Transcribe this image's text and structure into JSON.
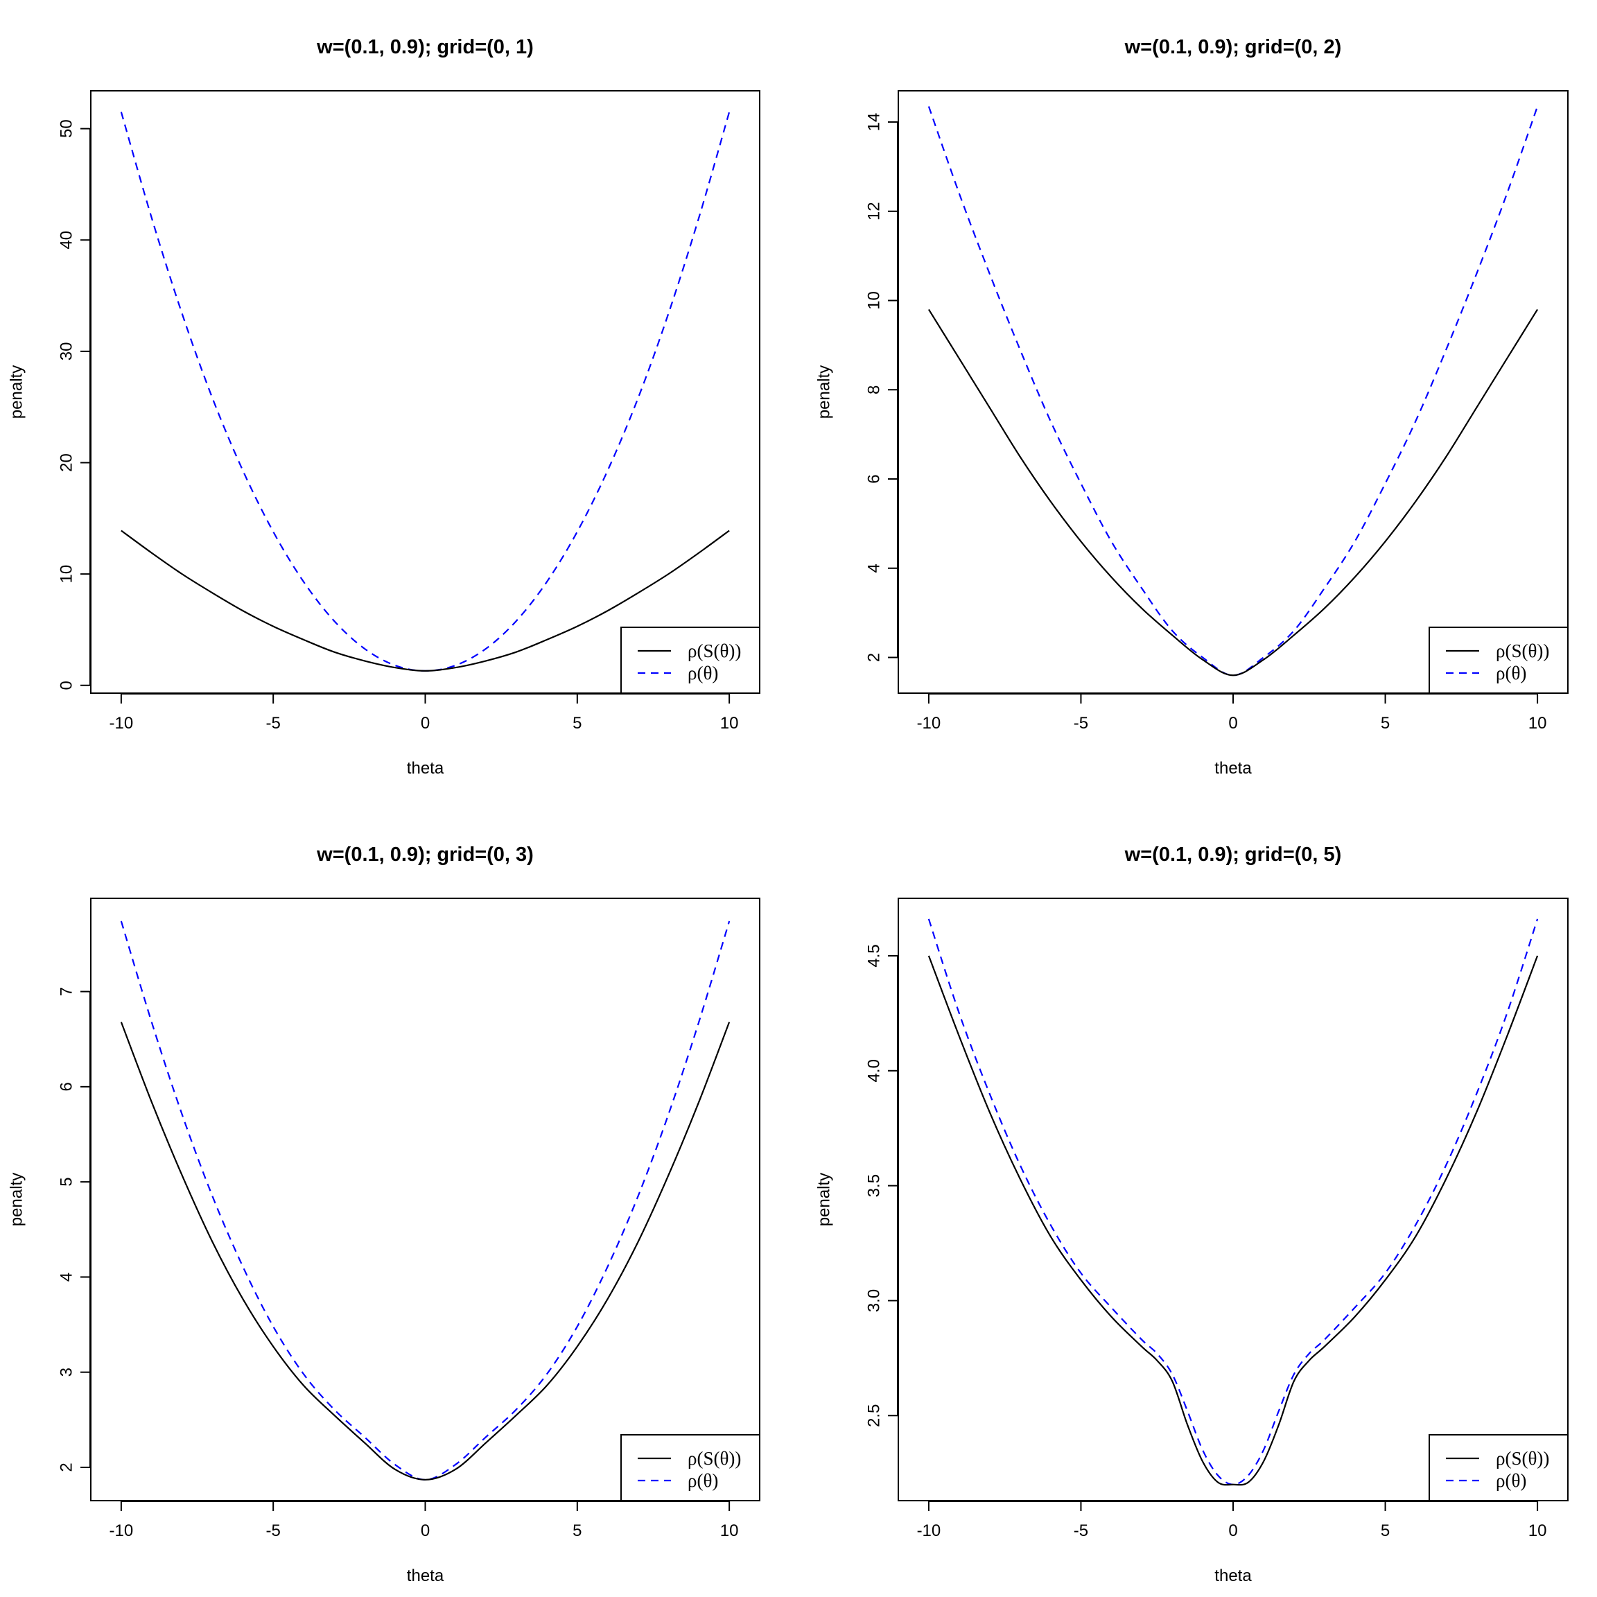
{
  "colors": {
    "black_series": "#000000",
    "blue_series": "#0000ff",
    "axis": "#000000",
    "background": "#ffffff"
  },
  "chart_data": [
    {
      "type": "line",
      "title": "w=(0.1, 0.9); grid=(0, 1)",
      "xlabel": "theta",
      "ylabel": "penalty",
      "xlim": [
        -11,
        11
      ],
      "ylim": [
        -0.7,
        53.4
      ],
      "xticks": [
        -10,
        -5,
        0,
        5,
        10
      ],
      "yticks": [
        0,
        10,
        20,
        30,
        40,
        50
      ],
      "ytick_labels": [
        "0",
        "10",
        "20",
        "30",
        "40",
        "50"
      ],
      "grid": false,
      "legend_position": "bottom-right",
      "series": [
        {
          "name": "ρ(S(θ))",
          "style": "solid",
          "color": "#000000",
          "x": [
            -10,
            -9,
            -8,
            -7,
            -6,
            -5,
            -4,
            -3,
            -2,
            -1,
            0,
            1,
            2,
            3,
            4,
            5,
            6,
            7,
            8,
            9,
            10
          ],
          "y": [
            13.9,
            11.9,
            10.0,
            8.3,
            6.7,
            5.3,
            4.1,
            3.0,
            2.2,
            1.6,
            1.3,
            1.6,
            2.2,
            3.0,
            4.1,
            5.3,
            6.7,
            8.3,
            10.0,
            11.9,
            13.9
          ]
        },
        {
          "name": "ρ(θ)",
          "style": "dashed",
          "color": "#0000ff",
          "x": [
            -10,
            -9,
            -8,
            -7,
            -6,
            -5,
            -4,
            -3,
            -2,
            -1,
            0,
            1,
            2,
            3,
            4,
            5,
            6,
            7,
            8,
            9,
            10
          ],
          "y": [
            51.5,
            42.0,
            33.4,
            25.8,
            19.3,
            13.8,
            9.3,
            5.8,
            3.3,
            1.8,
            1.3,
            1.8,
            3.3,
            5.8,
            9.3,
            13.8,
            19.3,
            25.8,
            33.4,
            42.0,
            51.5
          ]
        }
      ]
    },
    {
      "type": "line",
      "title": "w=(0.1, 0.9); grid=(0, 2)",
      "xlabel": "theta",
      "ylabel": "penalty",
      "xlim": [
        -11,
        11
      ],
      "ylim": [
        1.2,
        14.7
      ],
      "xticks": [
        -10,
        -5,
        0,
        5,
        10
      ],
      "yticks": [
        2,
        4,
        6,
        8,
        10,
        12,
        14
      ],
      "ytick_labels": [
        "2",
        "4",
        "6",
        "8",
        "10",
        "12",
        "14"
      ],
      "grid": false,
      "legend_position": "bottom-right",
      "series": [
        {
          "name": "ρ(S(θ))",
          "style": "solid",
          "color": "#000000",
          "x": [
            -10,
            -9,
            -8,
            -7,
            -6,
            -5,
            -4,
            -3,
            -2,
            -1,
            0,
            1,
            2,
            3,
            4,
            5,
            6,
            7,
            8,
            9,
            10
          ],
          "y": [
            9.8,
            8.7,
            7.6,
            6.5,
            5.5,
            4.6,
            3.8,
            3.1,
            2.5,
            1.95,
            1.6,
            1.95,
            2.5,
            3.1,
            3.8,
            4.6,
            5.5,
            6.5,
            7.6,
            8.7,
            9.8
          ]
        },
        {
          "name": "ρ(θ)",
          "style": "dashed",
          "color": "#0000ff",
          "x": [
            -10,
            -9,
            -8,
            -7,
            -6,
            -5,
            -4,
            -3,
            -2,
            -1,
            0,
            1,
            2,
            3,
            4,
            5,
            6,
            7,
            8,
            9,
            10
          ],
          "y": [
            14.35,
            12.4,
            10.6,
            8.9,
            7.3,
            5.9,
            4.6,
            3.55,
            2.6,
            2.0,
            1.6,
            2.0,
            2.6,
            3.55,
            4.6,
            5.9,
            7.3,
            8.9,
            10.6,
            12.4,
            14.35
          ]
        }
      ]
    },
    {
      "type": "line",
      "title": "w=(0.1, 0.9); grid=(0, 3)",
      "xlabel": "theta",
      "ylabel": "penalty",
      "xlim": [
        -11,
        11
      ],
      "ylim": [
        1.65,
        7.98
      ],
      "xticks": [
        -10,
        -5,
        0,
        5,
        10
      ],
      "yticks": [
        2,
        3,
        4,
        5,
        6,
        7
      ],
      "ytick_labels": [
        "2",
        "3",
        "4",
        "5",
        "6",
        "7"
      ],
      "grid": false,
      "legend_position": "bottom-right",
      "series": [
        {
          "name": "ρ(S(θ))",
          "style": "solid",
          "color": "#000000",
          "x": [
            -10,
            -9,
            -8,
            -7,
            -6,
            -5,
            -4,
            -3,
            -2,
            -1,
            0,
            1,
            2,
            3,
            4,
            5,
            6,
            7,
            8,
            9,
            10
          ],
          "y": [
            6.68,
            5.84,
            5.07,
            4.37,
            3.77,
            3.27,
            2.86,
            2.55,
            2.26,
            1.98,
            1.87,
            1.98,
            2.26,
            2.55,
            2.86,
            3.27,
            3.77,
            4.37,
            5.07,
            5.84,
            6.68
          ]
        },
        {
          "name": "ρ(θ)",
          "style": "dashed",
          "color": "#0000ff",
          "x": [
            -10,
            -9,
            -8,
            -7,
            -6,
            -5,
            -4,
            -3,
            -2,
            -1,
            0,
            1,
            2,
            3,
            4,
            5,
            6,
            7,
            8,
            9,
            10
          ],
          "y": [
            7.74,
            6.68,
            5.71,
            4.85,
            4.11,
            3.48,
            2.98,
            2.61,
            2.32,
            2.03,
            1.87,
            2.03,
            2.32,
            2.61,
            2.98,
            3.48,
            4.11,
            4.85,
            5.71,
            6.68,
            7.74
          ]
        }
      ]
    },
    {
      "type": "line",
      "title": "w=(0.1, 0.9); grid=(0, 5)",
      "xlabel": "theta",
      "ylabel": "penalty",
      "xlim": [
        -11,
        11
      ],
      "ylim": [
        2.13,
        4.75
      ],
      "xticks": [
        -10,
        -5,
        0,
        5,
        10
      ],
      "yticks": [
        2.5,
        3.0,
        3.5,
        4.0,
        4.5
      ],
      "ytick_labels": [
        "2.5",
        "3.0",
        "3.5",
        "4.0",
        "4.5"
      ],
      "grid": false,
      "legend_position": "bottom-right",
      "series": [
        {
          "name": "ρ(S(θ))",
          "style": "solid",
          "color": "#000000",
          "x": [
            -10,
            -9,
            -8,
            -7,
            -6,
            -5,
            -4,
            -3,
            -2.5,
            -2,
            -1.5,
            -1,
            -0.5,
            0,
            0.5,
            1,
            1.5,
            2,
            2.5,
            3,
            4,
            5,
            6,
            7,
            8,
            9,
            10
          ],
          "y": [
            4.5,
            4.15,
            3.82,
            3.53,
            3.28,
            3.09,
            2.93,
            2.8,
            2.74,
            2.65,
            2.46,
            2.3,
            2.21,
            2.2,
            2.21,
            2.3,
            2.46,
            2.65,
            2.74,
            2.8,
            2.93,
            3.09,
            3.28,
            3.53,
            3.82,
            4.15,
            4.5
          ]
        },
        {
          "name": "ρ(θ)",
          "style": "dashed",
          "color": "#0000ff",
          "x": [
            -10,
            -9,
            -8,
            -7,
            -6,
            -5,
            -4,
            -3,
            -2.5,
            -2,
            -1.5,
            -1,
            -0.5,
            0,
            0.5,
            1,
            1.5,
            2,
            2.5,
            3,
            4,
            5,
            6,
            7,
            8,
            9,
            10
          ],
          "y": [
            4.66,
            4.25,
            3.9,
            3.59,
            3.33,
            3.12,
            2.97,
            2.83,
            2.77,
            2.68,
            2.52,
            2.35,
            2.24,
            2.2,
            2.24,
            2.35,
            2.52,
            2.68,
            2.77,
            2.83,
            2.97,
            3.12,
            3.33,
            3.59,
            3.9,
            4.25,
            4.66
          ]
        }
      ]
    }
  ]
}
